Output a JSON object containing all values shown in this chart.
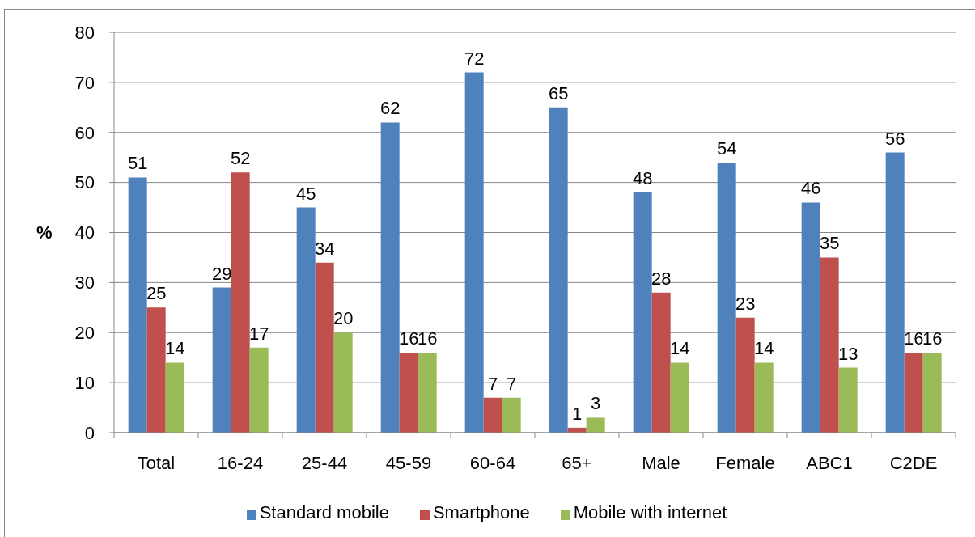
{
  "chart_data": {
    "type": "bar",
    "categories": [
      "Total",
      "16-24",
      "25-44",
      "45-59",
      "60-64",
      "65+",
      "Male",
      "Female",
      "ABC1",
      "C2DE"
    ],
    "series": [
      {
        "name": "Standard mobile",
        "color": "#4f81bd",
        "values": [
          51,
          29,
          45,
          62,
          72,
          65,
          48,
          54,
          46,
          56
        ]
      },
      {
        "name": "Smartphone",
        "color": "#c0504d",
        "values": [
          25,
          52,
          34,
          16,
          7,
          1,
          28,
          23,
          35,
          16
        ]
      },
      {
        "name": "Mobile with internet",
        "color": "#9bbb59",
        "values": [
          14,
          17,
          20,
          16,
          7,
          3,
          14,
          14,
          13,
          16
        ]
      }
    ],
    "ylabel": "%",
    "ylim": [
      0,
      80
    ],
    "yticks": [
      0,
      10,
      20,
      30,
      40,
      50,
      60,
      70,
      80
    ],
    "grid": "y",
    "legend": "bottom",
    "data_labels": true
  }
}
